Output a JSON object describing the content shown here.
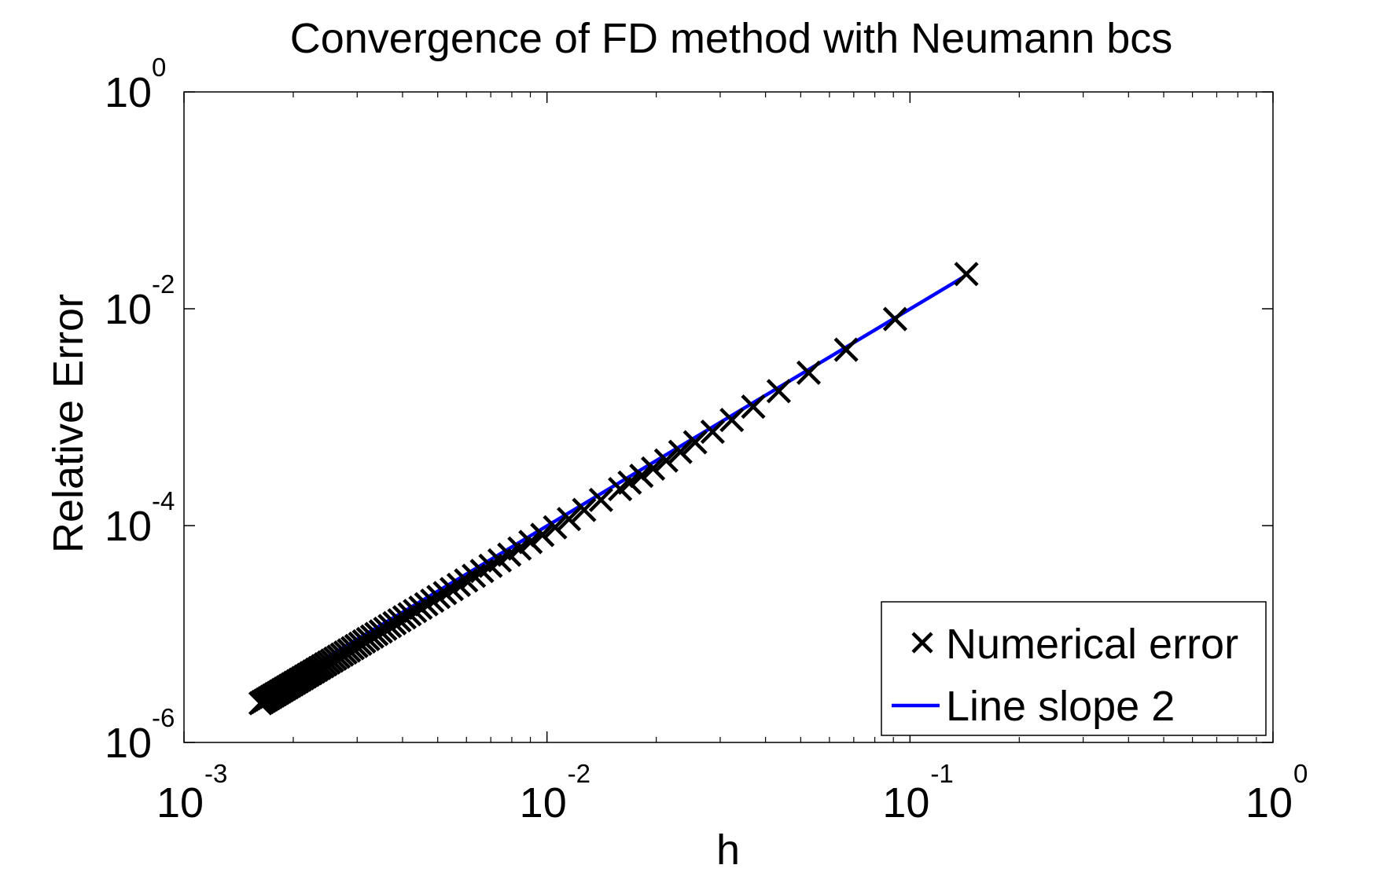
{
  "chart_data": {
    "type": "scatter",
    "title": "Convergence of FD method with Neumann bcs",
    "xlabel": "h",
    "ylabel": "Relative Error",
    "xscale": "log",
    "yscale": "log",
    "xlim": [
      0.001,
      1
    ],
    "ylim": [
      1e-06,
      1
    ],
    "grid": false,
    "legend_position": "bottom-right",
    "x_ticks": [
      {
        "base": "10",
        "exp": "-3",
        "value": 0.001
      },
      {
        "base": "10",
        "exp": "-2",
        "value": 0.01
      },
      {
        "base": "10",
        "exp": "-1",
        "value": 0.1
      },
      {
        "base": "10",
        "exp": "0",
        "value": 1
      }
    ],
    "y_ticks": [
      {
        "base": "10",
        "exp": "-6",
        "value": 1e-06
      },
      {
        "base": "10",
        "exp": "-4",
        "value": 0.0001
      },
      {
        "base": "10",
        "exp": "-2",
        "value": 0.01
      },
      {
        "base": "10",
        "exp": "0",
        "value": 1
      }
    ],
    "series": [
      {
        "name": "Numerical error",
        "style": "marker-x",
        "color": "#000000",
        "h_min": 0.00162,
        "h_max": 0.143,
        "points": 87,
        "h_values": [
          0.143,
          0.091,
          0.0667,
          0.0526,
          0.0435,
          0.037,
          0.0323,
          0.0286,
          0.0256,
          0.0233,
          0.0213,
          0.0196,
          0.0182,
          0.0169,
          0.0159
        ],
        "errors": [
          0.0209,
          0.00803,
          0.00419,
          0.00257,
          0.00174,
          0.00125,
          0.000942,
          0.000734,
          0.000587,
          0.000479,
          0.000398,
          0.000336,
          0.000288,
          0.000249,
          0.000217
        ]
      },
      {
        "name": "Line slope 2",
        "style": "line",
        "color": "#0000ff",
        "x": [
          0.00162,
          0.14
        ],
        "y": [
          2.6e-06,
          0.0195
        ]
      }
    ]
  }
}
